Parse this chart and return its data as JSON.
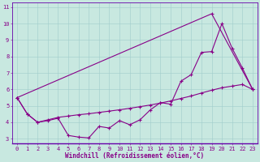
{
  "xlabel": "Windchill (Refroidissement éolien,°C)",
  "bg_color": "#c8e8e0",
  "line_color": "#880088",
  "grid_color": "#a0cccc",
  "spine_color": "#6600aa",
  "xlim_min": -0.5,
  "xlim_max": 23.5,
  "ylim_min": 2.7,
  "ylim_max": 11.3,
  "xticks": [
    0,
    1,
    2,
    3,
    4,
    5,
    6,
    7,
    8,
    9,
    10,
    11,
    12,
    13,
    14,
    15,
    16,
    17,
    18,
    19,
    20,
    21,
    22,
    23
  ],
  "yticks": [
    3,
    4,
    5,
    6,
    7,
    8,
    9,
    10,
    11
  ],
  "curve1_x": [
    0,
    1,
    2,
    3,
    4,
    5,
    6,
    7,
    8,
    9,
    10,
    11,
    12,
    13,
    14,
    15,
    16,
    17,
    18,
    19,
    20,
    21,
    22,
    23
  ],
  "curve1_y": [
    5.5,
    4.5,
    4.0,
    4.1,
    4.25,
    3.2,
    3.1,
    3.05,
    3.75,
    3.65,
    4.1,
    3.85,
    4.15,
    4.75,
    5.2,
    5.1,
    6.5,
    6.9,
    8.25,
    8.3,
    10.0,
    8.5,
    7.3,
    6.0
  ],
  "curve2_x": [
    0,
    1,
    2,
    3,
    4,
    5,
    6,
    7,
    8,
    9,
    10,
    11,
    12,
    13,
    14,
    15,
    16,
    17,
    18,
    19,
    20,
    21,
    22,
    23
  ],
  "curve2_y": [
    5.5,
    4.5,
    4.0,
    4.15,
    4.3,
    4.38,
    4.46,
    4.52,
    4.6,
    4.68,
    4.76,
    4.85,
    4.95,
    5.05,
    5.17,
    5.3,
    5.45,
    5.6,
    5.78,
    5.95,
    6.1,
    6.2,
    6.3,
    6.0
  ],
  "curve3_x": [
    0,
    19,
    23
  ],
  "curve3_y": [
    5.5,
    10.6,
    6.0
  ],
  "font_size": 5.5,
  "tick_font_size": 5,
  "lw": 0.8,
  "ms": 2.5,
  "mew": 0.8
}
